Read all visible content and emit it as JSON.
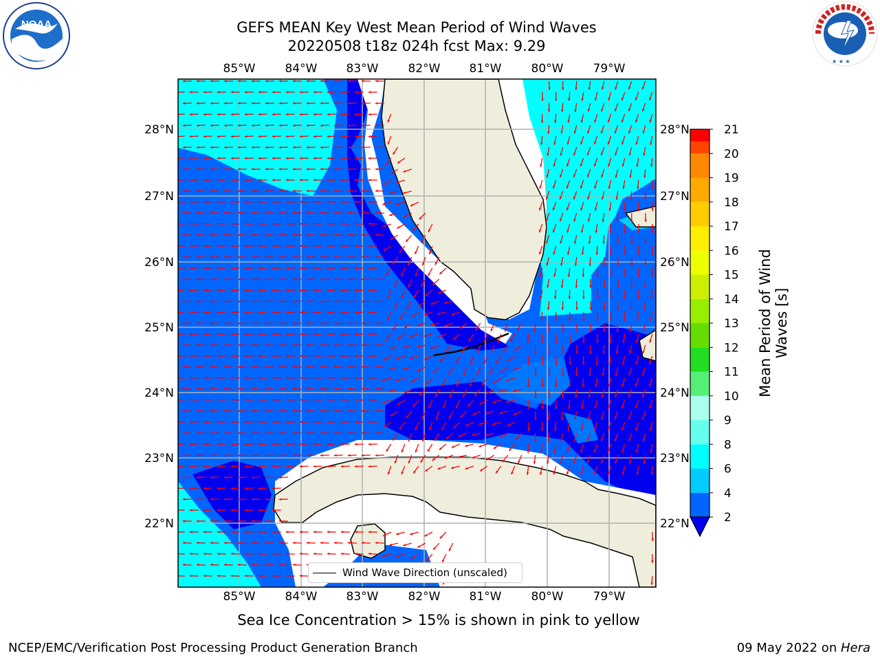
{
  "title": {
    "line1": "GEFS MEAN Key West Mean Period of Wind Waves",
    "line2": "20220508 t18z 024h fcst   Max: 9.29"
  },
  "logos": {
    "left": "noaa-logo",
    "right": "national-weather-service-logo"
  },
  "map": {
    "lon_labels": [
      "85°W",
      "84°W",
      "83°W",
      "82°W",
      "81°W",
      "80°W",
      "79°W"
    ],
    "lat_labels": [
      "28°N",
      "27°N",
      "26°N",
      "25°N",
      "24°N",
      "23°N",
      "22°N"
    ],
    "legend": "Wind Wave Direction (unscaled)",
    "arrow_color": "#ff0000",
    "land_color": "#efeddc"
  },
  "colorbar": {
    "label": "Mean Period of Wind Waves [s]",
    "ticks": [
      "2",
      "4",
      "6",
      "8",
      "9",
      "10",
      "11",
      "12",
      "13",
      "14",
      "15",
      "16",
      "17",
      "18",
      "19",
      "20",
      "21"
    ],
    "colors": [
      "#0066ff",
      "#00ccff",
      "#00ffff",
      "#33ffee",
      "#66ffcc",
      "#99ffdd",
      "#55ee55",
      "#22dd22",
      "#66dd00",
      "#99ee00",
      "#ccee00",
      "#eeff00",
      "#ffee00",
      "#ffcc00",
      "#ffaa00",
      "#ff8800",
      "#ff5500",
      "#ff2200",
      "#ff0000"
    ],
    "under_color": "#0000ee"
  },
  "subtitle": "Sea Ice Concentration > 15% is shown in pink to yellow",
  "footer": {
    "left": "NCEP/EMC/Verification Post Processing Product Generation Branch",
    "right_date": "09 May 2022 on ",
    "right_host": "Hera"
  }
}
